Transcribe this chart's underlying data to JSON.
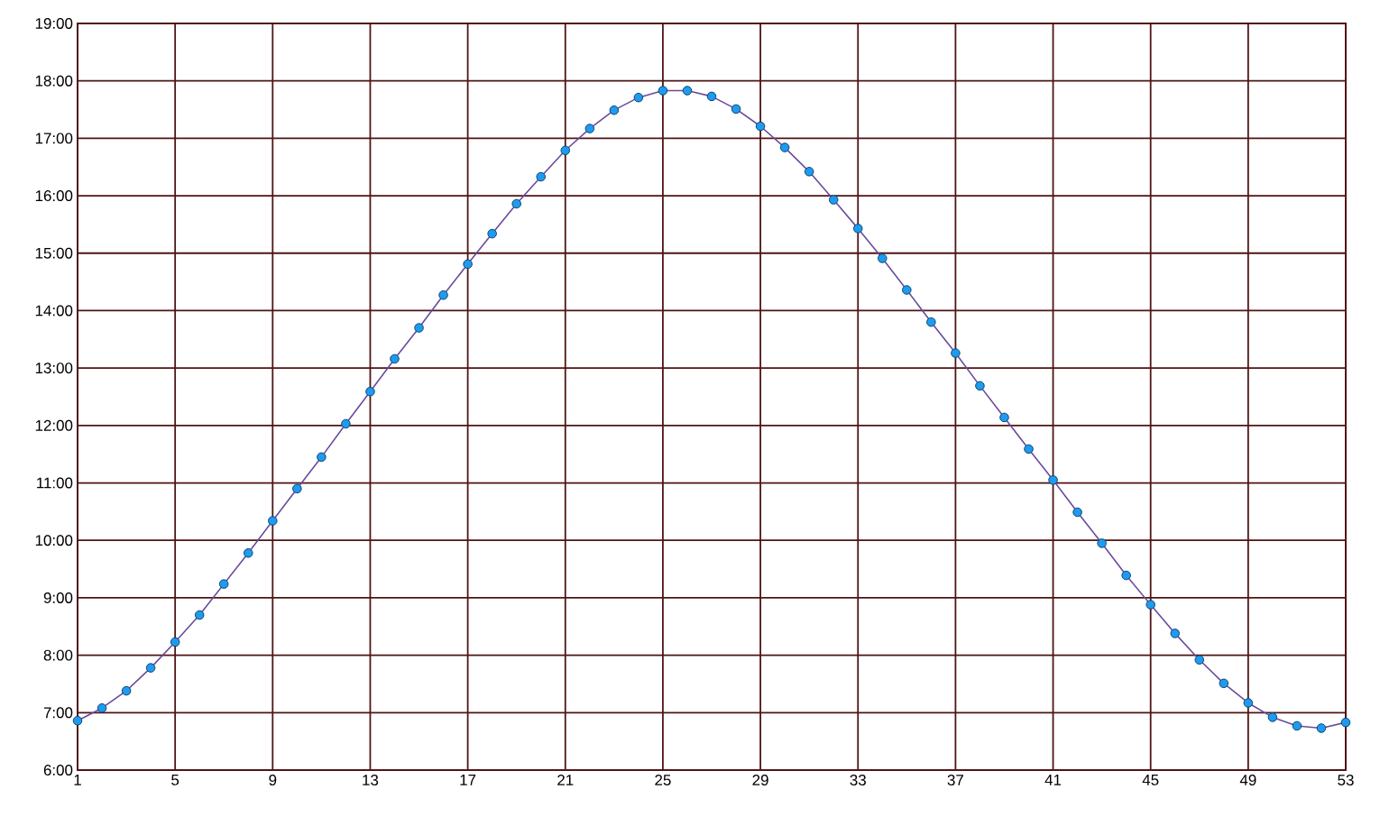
{
  "chart_data": {
    "type": "line",
    "x": [
      1,
      2,
      3,
      4,
      5,
      6,
      7,
      8,
      9,
      10,
      11,
      12,
      13,
      14,
      15,
      16,
      17,
      18,
      19,
      20,
      21,
      22,
      23,
      24,
      25,
      26,
      27,
      28,
      29,
      30,
      31,
      32,
      33,
      34,
      35,
      36,
      37,
      38,
      39,
      40,
      41,
      42,
      43,
      44,
      45,
      46,
      47,
      48,
      49,
      50,
      51,
      52,
      53
    ],
    "series": [
      {
        "color": "#1e9bf0",
        "values": [
          6.86,
          7.08,
          7.38,
          7.78,
          8.23,
          8.7,
          9.24,
          9.78,
          10.34,
          10.9,
          11.45,
          12.03,
          12.59,
          13.16,
          13.7,
          14.27,
          14.81,
          15.34,
          15.86,
          16.33,
          16.79,
          17.17,
          17.49,
          17.71,
          17.83,
          17.83,
          17.73,
          17.51,
          17.21,
          16.84,
          16.42,
          15.93,
          15.43,
          14.91,
          14.36,
          13.8,
          13.26,
          12.69,
          12.14,
          11.59,
          11.05,
          10.49,
          9.95,
          9.39,
          8.88,
          8.38,
          7.92,
          7.51,
          7.17,
          6.92,
          6.77,
          6.73,
          6.83
        ]
      }
    ],
    "xlim": [
      1,
      53
    ],
    "xticks": [
      1,
      5,
      9,
      13,
      17,
      21,
      25,
      29,
      33,
      37,
      41,
      45,
      49,
      53
    ],
    "ylim": [
      6,
      19
    ],
    "yticks": [
      {
        "value": 6,
        "label": "6:00"
      },
      {
        "value": 7,
        "label": "7:00"
      },
      {
        "value": 8,
        "label": "8:00"
      },
      {
        "value": 9,
        "label": "9:00"
      },
      {
        "value": 10,
        "label": "10:00"
      },
      {
        "value": 11,
        "label": "11:00"
      },
      {
        "value": 12,
        "label": "12:00"
      },
      {
        "value": 13,
        "label": "13:00"
      },
      {
        "value": 14,
        "label": "14:00"
      },
      {
        "value": 15,
        "label": "15:00"
      },
      {
        "value": 16,
        "label": "16:00"
      },
      {
        "value": 17,
        "label": "17:00"
      },
      {
        "value": 18,
        "label": "18:00"
      },
      {
        "value": 19,
        "label": "19:00"
      }
    ],
    "grid": true,
    "marker": "circle",
    "line_style": "solid"
  }
}
